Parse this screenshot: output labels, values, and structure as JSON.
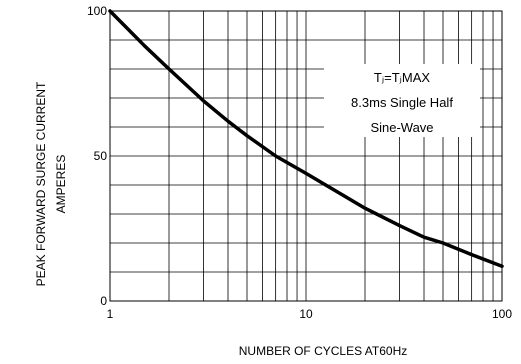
{
  "chart_data": {
    "type": "line",
    "xscale": "log",
    "xlim": [
      1,
      100
    ],
    "ylim": [
      0,
      100
    ],
    "xlabel": "NUMBER OF  CYCLES AT60Hz",
    "ylabel_lines": [
      "PEAK FORWARD SURGE CURRENT",
      "AMPERES"
    ],
    "xticks": [
      {
        "value": 1,
        "label": "1"
      },
      {
        "value": 10,
        "label": "10"
      },
      {
        "value": 100,
        "label": "100"
      }
    ],
    "yticks": [
      {
        "value": 0,
        "label": "0"
      },
      {
        "value": 50,
        "label": "50"
      },
      {
        "value": 100,
        "label": "100"
      }
    ],
    "grid": true,
    "grid_y_values": [
      0,
      10,
      20,
      30,
      40,
      50,
      60,
      70,
      80,
      90,
      100
    ],
    "grid_x_values": [
      1,
      2,
      3,
      4,
      5,
      6,
      7,
      8,
      9,
      10,
      20,
      30,
      40,
      50,
      60,
      70,
      80,
      90,
      100
    ],
    "annotation": {
      "lines": [
        "Tⱼ=TⱼMAX",
        "8.3ms Single Half",
        "Sine-Wave"
      ],
      "placement": "upper-right"
    },
    "series": [
      {
        "x": [
          1,
          1.5,
          2,
          3,
          4,
          5,
          7,
          10,
          15,
          20,
          30,
          40,
          50,
          70,
          100
        ],
        "y": [
          100,
          88,
          80,
          69,
          62,
          57,
          50,
          44,
          37,
          32,
          26,
          22,
          20,
          16,
          12
        ],
        "color": "#000000"
      }
    ]
  }
}
